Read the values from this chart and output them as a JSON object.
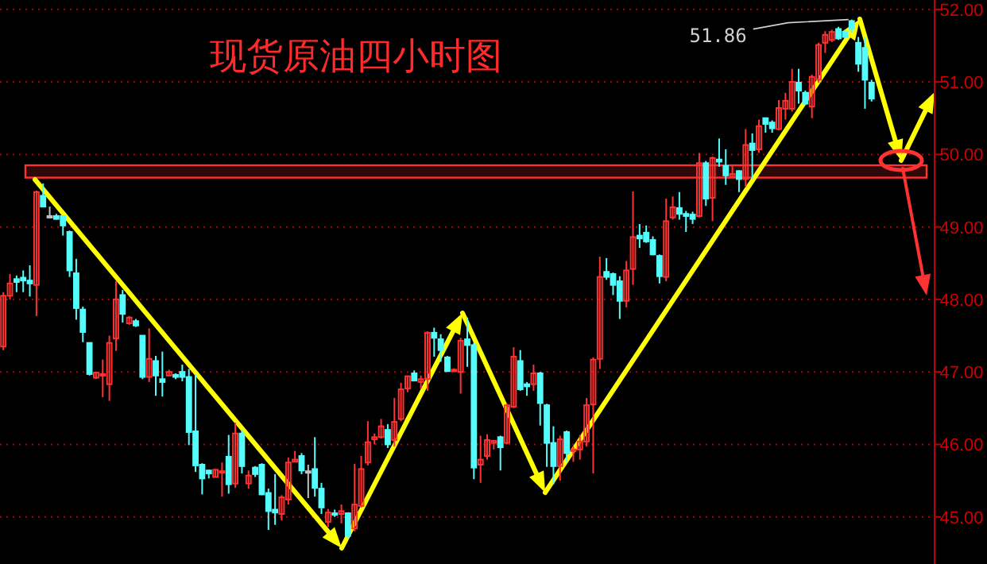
{
  "chart_data": {
    "type": "candlestick",
    "title": "现货原油四小时图",
    "categories": [
      null,
      null,
      null,
      null,
      null,
      null,
      null,
      null,
      null,
      null,
      null,
      null,
      null,
      null,
      null,
      null,
      null,
      null,
      null,
      null,
      null,
      null,
      null,
      null,
      null,
      null,
      null,
      null,
      null,
      null,
      null,
      null,
      null,
      null,
      null,
      null,
      null,
      null,
      null,
      null,
      null,
      null,
      null,
      null,
      null,
      null,
      null,
      null,
      null,
      null,
      null,
      null,
      null,
      null,
      null,
      null,
      null,
      null,
      null,
      null,
      null,
      null,
      null,
      null,
      null,
      null,
      null,
      null,
      null,
      null,
      null,
      null,
      null,
      null,
      null,
      null,
      null,
      null,
      null,
      null,
      null,
      null,
      null,
      null,
      null,
      null,
      null,
      null,
      null,
      null,
      null,
      null,
      null,
      null,
      null,
      null,
      null,
      null,
      null,
      null,
      null,
      null,
      null,
      null,
      null,
      null,
      null,
      null,
      null,
      null,
      null,
      null,
      null,
      null,
      null,
      null,
      null,
      null,
      null,
      null,
      null,
      null,
      null,
      null,
      null,
      null,
      null,
      null,
      null,
      null,
      null,
      null,
      null,
      null,
      null,
      null,
      null,
      null,
      null,
      null,
      null
    ],
    "ohlc": [
      [
        47.35,
        48.1,
        47.3,
        48.05
      ],
      [
        48.05,
        48.35,
        48.0,
        48.22
      ],
      [
        48.28,
        48.33,
        48.1,
        48.24
      ],
      [
        48.3,
        48.4,
        48.1,
        48.26
      ],
      [
        48.26,
        48.47,
        48.04,
        48.22
      ],
      [
        48.2,
        49.5,
        47.77,
        49.48
      ],
      [
        49.43,
        49.6,
        49.27,
        49.28
      ],
      [
        49.15,
        49.28,
        49.14,
        49.15
      ],
      [
        49.15,
        49.18,
        49.1,
        49.11
      ],
      [
        49.15,
        49.16,
        48.88,
        49.02
      ],
      [
        48.93,
        48.95,
        48.31,
        48.4
      ],
      [
        48.36,
        48.56,
        47.72,
        47.88
      ],
      [
        47.86,
        47.9,
        47.41,
        47.55
      ],
      [
        47.4,
        47.4,
        46.95,
        46.97
      ],
      [
        46.92,
        47.0,
        46.9,
        46.99
      ],
      [
        46.96,
        47.17,
        46.65,
        46.97
      ],
      [
        46.83,
        47.5,
        46.6,
        47.4
      ],
      [
        47.46,
        48.25,
        47.29,
        48.0
      ],
      [
        48.06,
        48.13,
        47.68,
        47.8
      ],
      [
        47.67,
        47.77,
        47.65,
        47.75
      ],
      [
        47.7,
        47.73,
        47.62,
        47.64
      ],
      [
        47.5,
        47.5,
        46.9,
        46.93
      ],
      [
        46.93,
        47.6,
        46.86,
        47.18
      ],
      [
        47.15,
        47.22,
        46.67,
        46.95
      ],
      [
        46.9,
        47.28,
        46.66,
        46.86
      ],
      [
        46.95,
        47.03,
        46.94,
        47.0
      ],
      [
        46.96,
        46.98,
        46.9,
        46.93
      ],
      [
        47.0,
        47.1,
        46.87,
        46.93
      ],
      [
        46.93,
        47.04,
        45.99,
        46.17
      ],
      [
        46.18,
        46.97,
        45.62,
        45.71
      ],
      [
        45.72,
        45.74,
        45.31,
        45.53
      ],
      [
        45.64,
        45.65,
        45.53,
        45.6
      ],
      [
        45.55,
        45.66,
        45.55,
        45.65
      ],
      [
        45.62,
        45.75,
        45.28,
        45.63
      ],
      [
        45.83,
        46.13,
        45.32,
        45.45
      ],
      [
        45.46,
        46.3,
        45.4,
        46.15
      ],
      [
        46.15,
        46.2,
        45.6,
        45.7
      ],
      [
        45.46,
        45.64,
        45.39,
        45.57
      ],
      [
        45.68,
        45.7,
        45.55,
        45.59
      ],
      [
        45.72,
        45.74,
        45.3,
        45.31
      ],
      [
        45.33,
        45.39,
        44.82,
        45.08
      ],
      [
        45.1,
        45.59,
        44.89,
        45.06
      ],
      [
        45.04,
        45.3,
        44.95,
        45.27
      ],
      [
        45.24,
        45.82,
        45.17,
        45.75
      ],
      [
        45.76,
        45.91,
        45.76,
        45.79
      ],
      [
        45.84,
        45.88,
        45.59,
        45.64
      ],
      [
        45.63,
        45.72,
        45.26,
        45.63
      ],
      [
        45.66,
        46.1,
        45.28,
        45.4
      ],
      [
        45.39,
        45.47,
        45.04,
        45.13
      ],
      [
        44.93,
        45.11,
        44.86,
        45.06
      ],
      [
        45.05,
        45.1,
        45.0,
        45.04
      ],
      [
        45.04,
        45.17,
        44.91,
        45.08
      ],
      [
        45.05,
        45.06,
        44.7,
        44.74
      ],
      [
        44.84,
        45.73,
        44.8,
        45.17
      ],
      [
        45.15,
        45.84,
        45.13,
        45.66
      ],
      [
        45.75,
        46.32,
        45.71,
        46.03
      ],
      [
        46.07,
        46.15,
        46.0,
        46.1
      ],
      [
        46.1,
        46.35,
        46.08,
        46.25
      ],
      [
        46.2,
        46.28,
        45.95,
        46.0
      ],
      [
        46.06,
        46.64,
        45.97,
        46.31
      ],
      [
        46.35,
        46.85,
        46.32,
        46.76
      ],
      [
        46.77,
        46.95,
        46.72,
        46.94
      ],
      [
        46.98,
        47.02,
        46.87,
        46.88
      ],
      [
        46.86,
        46.95,
        46.77,
        46.9
      ],
      [
        46.9,
        47.56,
        46.74,
        47.54
      ],
      [
        47.54,
        47.61,
        47.21,
        47.47
      ],
      [
        47.45,
        47.52,
        47.14,
        47.3
      ],
      [
        47.2,
        47.22,
        47.0,
        47.01
      ],
      [
        47.02,
        47.05,
        47.0,
        47.03
      ],
      [
        47.0,
        47.47,
        46.7,
        47.43
      ],
      [
        47.45,
        47.75,
        47.07,
        47.37
      ],
      [
        47.37,
        47.4,
        45.52,
        45.68
      ],
      [
        45.72,
        46.12,
        45.47,
        45.79
      ],
      [
        45.84,
        46.14,
        45.79,
        46.06
      ],
      [
        46.02,
        46.05,
        45.93,
        46.05
      ],
      [
        46.1,
        46.12,
        45.64,
        45.96
      ],
      [
        46.02,
        46.56,
        46.0,
        46.54
      ],
      [
        46.52,
        47.34,
        46.5,
        47.21
      ],
      [
        47.15,
        47.3,
        46.74,
        46.76
      ],
      [
        46.83,
        46.86,
        46.67,
        46.8
      ],
      [
        46.83,
        47.1,
        46.74,
        46.98
      ],
      [
        46.98,
        47.0,
        46.26,
        46.57
      ],
      [
        46.54,
        46.56,
        45.69,
        46.02
      ],
      [
        46.02,
        46.25,
        45.45,
        45.7
      ],
      [
        45.7,
        46.12,
        45.5,
        46.07
      ],
      [
        46.17,
        46.19,
        45.76,
        45.88
      ],
      [
        45.91,
        45.97,
        45.76,
        45.93
      ],
      [
        45.93,
        46.13,
        45.79,
        46.04
      ],
      [
        46.04,
        46.64,
        45.97,
        46.54
      ],
      [
        46.55,
        47.2,
        45.6,
        47.17
      ],
      [
        47.18,
        48.59,
        47.04,
        48.31
      ],
      [
        48.38,
        48.57,
        48.27,
        48.31
      ],
      [
        48.35,
        48.37,
        48.06,
        48.2
      ],
      [
        48.25,
        48.32,
        47.73,
        47.98
      ],
      [
        47.98,
        48.53,
        47.89,
        48.4
      ],
      [
        48.42,
        49.49,
        48.2,
        48.86
      ],
      [
        48.88,
        49.04,
        48.71,
        48.84
      ],
      [
        48.92,
        49.02,
        48.78,
        48.8
      ],
      [
        48.82,
        48.87,
        48.61,
        48.62
      ],
      [
        48.6,
        48.62,
        48.22,
        48.32
      ],
      [
        48.31,
        49.39,
        48.25,
        49.08
      ],
      [
        49.13,
        49.42,
        49.1,
        49.27
      ],
      [
        49.26,
        49.48,
        49.1,
        49.18
      ],
      [
        49.18,
        49.22,
        48.93,
        49.15
      ],
      [
        49.17,
        49.21,
        49.04,
        49.11
      ],
      [
        49.15,
        50.02,
        49.13,
        49.88
      ],
      [
        49.88,
        49.91,
        49.29,
        49.39
      ],
      [
        49.4,
        49.97,
        49.08,
        49.95
      ],
      [
        49.93,
        50.22,
        49.83,
        49.9
      ],
      [
        49.84,
        50.07,
        49.58,
        49.71
      ],
      [
        49.69,
        49.85,
        49.69,
        49.73
      ],
      [
        49.77,
        49.78,
        49.48,
        49.66
      ],
      [
        49.66,
        50.35,
        49.55,
        50.13
      ],
      [
        50.15,
        50.29,
        49.66,
        50.06
      ],
      [
        50.07,
        50.48,
        50.02,
        50.39
      ],
      [
        50.5,
        50.51,
        50.3,
        50.42
      ],
      [
        50.44,
        50.47,
        50.3,
        50.36
      ],
      [
        50.35,
        50.75,
        50.33,
        50.64
      ],
      [
        50.63,
        50.85,
        50.48,
        50.74
      ],
      [
        50.63,
        51.18,
        50.59,
        51.0
      ],
      [
        50.99,
        51.18,
        50.7,
        50.88
      ],
      [
        50.85,
        50.88,
        50.68,
        50.7
      ],
      [
        50.66,
        51.1,
        50.5,
        51.07
      ],
      [
        51.03,
        51.54,
        50.99,
        51.51
      ],
      [
        51.54,
        51.7,
        51.4,
        51.65
      ],
      [
        51.58,
        51.72,
        51.55,
        51.69
      ],
      [
        51.73,
        51.76,
        51.58,
        51.6
      ],
      [
        51.69,
        51.72,
        51.6,
        51.62
      ],
      [
        51.84,
        51.86,
        51.68,
        51.73
      ],
      [
        51.54,
        51.62,
        51.14,
        51.25
      ],
      [
        51.47,
        51.62,
        50.63,
        51.03
      ],
      [
        50.99,
        51.03,
        50.73,
        50.77
      ],
      null,
      null,
      null,
      null,
      null,
      null,
      null,
      null,
      null
    ],
    "colors": [
      "#ff3232",
      "#ff3232",
      "#54fcfc",
      "#54fcfc",
      "#54fcfc",
      "#ff3232",
      "#54fcfc",
      "#c0c0c0",
      "#54fcfc",
      "#54fcfc",
      "#54fcfc",
      "#54fcfc",
      "#54fcfc",
      "#54fcfc",
      "#ff3232",
      "#ff3232",
      "#ff3232",
      "#ff3232",
      "#54fcfc",
      "#ff3232",
      "#54fcfc",
      "#54fcfc",
      "#ff3232",
      "#54fcfc",
      "#54fcfc",
      "#ff3232",
      "#54fcfc",
      "#54fcfc",
      "#54fcfc",
      "#54fcfc",
      "#54fcfc",
      "#54fcfc",
      "#ff3232",
      "#ff3232",
      "#54fcfc",
      "#ff3232",
      "#54fcfc",
      "#ff3232",
      "#54fcfc",
      "#54fcfc",
      "#54fcfc",
      "#54fcfc",
      "#ff3232",
      "#ff3232",
      "#ff3232",
      "#54fcfc",
      "#c0c0c0",
      "#54fcfc",
      "#54fcfc",
      "#ff3232",
      "#54fcfc",
      "#ff3232",
      "#54fcfc",
      "#ff3232",
      "#ff3232",
      "#ff3232",
      "#ff3232",
      "#ff3232",
      "#54fcfc",
      "#ff3232",
      "#ff3232",
      "#ff3232",
      "#54fcfc",
      "#ff3232",
      "#ff3232",
      "#54fcfc",
      "#54fcfc",
      "#54fcfc",
      "#ff3232",
      "#ff3232",
      "#54fcfc",
      "#54fcfc",
      "#ff3232",
      "#ff3232",
      "#ff3232",
      "#54fcfc",
      "#ff3232",
      "#ff3232",
      "#54fcfc",
      "#54fcfc",
      "#ff3232",
      "#54fcfc",
      "#54fcfc",
      "#54fcfc",
      "#ff3232",
      "#54fcfc",
      "#ff3232",
      "#ff3232",
      "#ff3232",
      "#ff3232",
      "#ff3232",
      "#54fcfc",
      "#54fcfc",
      "#54fcfc",
      "#ff3232",
      "#ff3232",
      "#54fcfc",
      "#54fcfc",
      "#54fcfc",
      "#54fcfc",
      "#ff3232",
      "#ff3232",
      "#54fcfc",
      "#54fcfc",
      "#54fcfc",
      "#ff3232",
      "#54fcfc",
      "#ff3232",
      "#54fcfc",
      "#54fcfc",
      "#ff3232",
      "#54fcfc",
      "#ff3232",
      "#54fcfc",
      "#ff3232",
      "#54fcfc",
      "#54fcfc",
      "#ff3232",
      "#ff3232",
      "#ff3232",
      "#54fcfc",
      "#54fcfc",
      "#ff3232",
      "#ff3232",
      "#ff3232",
      "#ff3232",
      "#54fcfc",
      "#54fcfc",
      "#54fcfc",
      "#54fcfc",
      "#54fcfc",
      "#54fcfc",
      null,
      null,
      null,
      null,
      null,
      null,
      null,
      null,
      null
    ],
    "bands": [
      {
        "axis": "y",
        "from": 49.68,
        "to": 49.85,
        "color": "#ff3232"
      }
    ],
    "annotations": [
      "51.86"
    ],
    "ylim": [
      44.35,
      52.13
    ],
    "yticks": [
      {
        "value": 45,
        "label": "45.00"
      },
      {
        "value": 46,
        "label": "46.00"
      },
      {
        "value": 47,
        "label": "47.00"
      },
      {
        "value": 48,
        "label": "48.00"
      },
      {
        "value": 49,
        "label": "49.00"
      },
      {
        "value": 50,
        "label": "50.00"
      },
      {
        "value": 51,
        "label": "51.00"
      },
      {
        "value": 52,
        "label": "52.00"
      }
    ],
    "grid": "y",
    "tick_labels": "y"
  }
}
